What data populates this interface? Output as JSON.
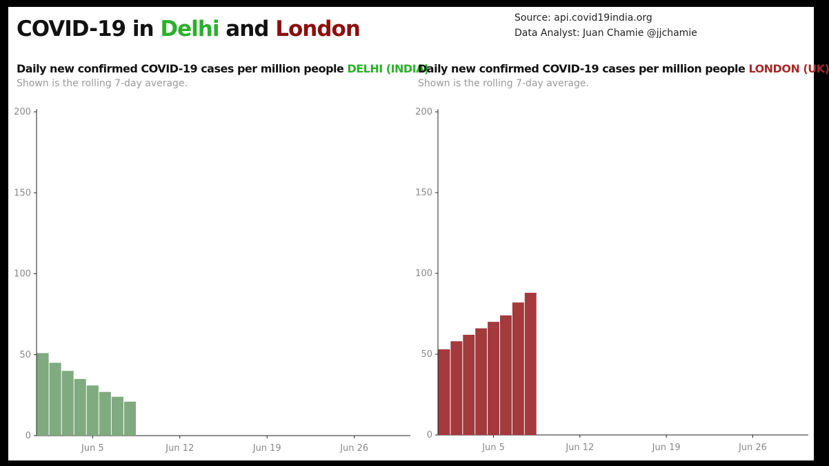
{
  "header": {
    "title_prefix": "COVID-19 in ",
    "title_city1": "Delhi",
    "title_mid": " and ",
    "title_city2": "London",
    "source": "Source: api.covid19india.org",
    "analyst": "Data Analyst:  Juan Chamie @jjchamie"
  },
  "colors": {
    "delhi_accent": "#2bb02b",
    "london_accent": "#8b0f0f",
    "delhi_bar": "#80ab80",
    "london_bar": "#a33a3d"
  },
  "chart_data": [
    {
      "type": "bar",
      "title": "Daily new confirmed COVID-19 cases per million people",
      "title_highlight": "DELHI (INDIA)",
      "subtitle": "Shown is the rolling 7-day average.",
      "x_start": "Jun 1",
      "x_end": "Jul 1",
      "x_ticks": [
        "Jun 5",
        "Jun 12",
        "Jun 19",
        "Jun 26"
      ],
      "y_ticks": [
        0,
        50,
        100,
        150,
        200
      ],
      "ylim": [
        0,
        200
      ],
      "categories": [
        "Jun 1",
        "Jun 2",
        "Jun 3",
        "Jun 4",
        "Jun 5",
        "Jun 6",
        "Jun 7",
        "Jun 8"
      ],
      "values": [
        51,
        45,
        40,
        35,
        31,
        27,
        24,
        21
      ],
      "grid": false
    },
    {
      "type": "bar",
      "title": "Daily new confirmed COVID-19 cases per million people",
      "title_highlight": "LONDON (UK)",
      "subtitle": "Shown is the rolling 7-day average.",
      "x_start": "Jun 1",
      "x_end": "Jul 1",
      "x_ticks": [
        "Jun 5",
        "Jun 12",
        "Jun 19",
        "Jun 26"
      ],
      "y_ticks": [
        0,
        50,
        100,
        150,
        200
      ],
      "ylim": [
        0,
        200
      ],
      "categories": [
        "Jun 1",
        "Jun 2",
        "Jun 3",
        "Jun 4",
        "Jun 5",
        "Jun 6",
        "Jun 7",
        "Jun 8"
      ],
      "values": [
        53,
        58,
        62,
        66,
        70,
        74,
        82,
        88
      ],
      "grid": false
    }
  ]
}
